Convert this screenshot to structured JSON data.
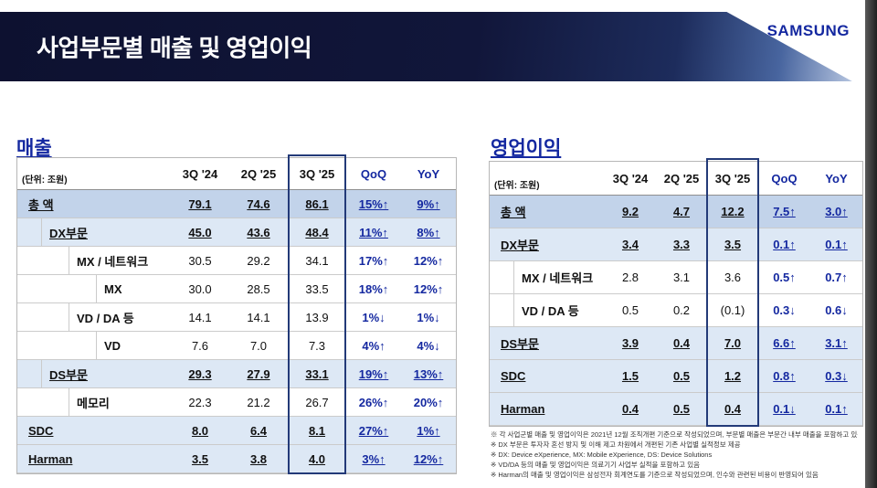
{
  "header": {
    "title": "사업부문별 매출 및 영업이익",
    "logo": "SAMSUNG"
  },
  "revenue": {
    "section_title": "매출",
    "unit_label": "(단위: 조원)",
    "columns": [
      "3Q '24",
      "2Q '25",
      "3Q '25",
      "QoQ",
      "YoY"
    ],
    "rows": [
      {
        "label": "총 액",
        "indent": 0,
        "style": "total",
        "values": [
          "79.1",
          "74.6",
          "86.1",
          "15%↑",
          "9%↑"
        ]
      },
      {
        "label": "DX부문",
        "indent": 1,
        "style": "section",
        "values": [
          "45.0",
          "43.6",
          "48.4",
          "11%↑",
          "8%↑"
        ]
      },
      {
        "label": "MX / 네트워크",
        "indent": 2,
        "style": "plain",
        "values": [
          "30.5",
          "29.2",
          "34.1",
          "17%↑",
          "12%↑"
        ]
      },
      {
        "label": "MX",
        "indent": 3,
        "style": "plain",
        "values": [
          "30.0",
          "28.5",
          "33.5",
          "18%↑",
          "12%↑"
        ]
      },
      {
        "label": "VD / DA 등",
        "indent": 2,
        "style": "plain",
        "values": [
          "14.1",
          "14.1",
          "13.9",
          "1%↓",
          "1%↓"
        ]
      },
      {
        "label": "VD",
        "indent": 3,
        "style": "plain",
        "values": [
          "7.6",
          "7.0",
          "7.3",
          "4%↑",
          "4%↓"
        ]
      },
      {
        "label": "DS부문",
        "indent": 1,
        "style": "section",
        "values": [
          "29.3",
          "27.9",
          "33.1",
          "19%↑",
          "13%↑"
        ]
      },
      {
        "label": "메모리",
        "indent": 2,
        "style": "plain",
        "values": [
          "22.3",
          "21.2",
          "26.7",
          "26%↑",
          "20%↑"
        ]
      },
      {
        "label": "SDC",
        "indent": 0,
        "style": "section",
        "values": [
          "8.0",
          "6.4",
          "8.1",
          "27%↑",
          "1%↑"
        ]
      },
      {
        "label": "Harman",
        "indent": 0,
        "style": "section",
        "values": [
          "3.5",
          "3.8",
          "4.0",
          "3%↑",
          "12%↑"
        ]
      }
    ]
  },
  "operating_profit": {
    "section_title": "영업이익",
    "unit_label": "(단위: 조원)",
    "columns": [
      "3Q '24",
      "2Q '25",
      "3Q '25",
      "QoQ",
      "YoY"
    ],
    "rows": [
      {
        "label": "총 액",
        "indent": 0,
        "style": "total",
        "values": [
          "9.2",
          "4.7",
          "12.2",
          "7.5↑",
          "3.0↑"
        ]
      },
      {
        "label": "DX부문",
        "indent": 0,
        "style": "section",
        "values": [
          "3.4",
          "3.3",
          "3.5",
          "0.1↑",
          "0.1↑"
        ]
      },
      {
        "label": "MX / 네트워크",
        "indent": 1,
        "style": "plain",
        "values": [
          "2.8",
          "3.1",
          "3.6",
          "0.5↑",
          "0.7↑"
        ]
      },
      {
        "label": "VD / DA 등",
        "indent": 1,
        "style": "plain",
        "values": [
          "0.5",
          "0.2",
          "(0.1)",
          "0.3↓",
          "0.6↓"
        ]
      },
      {
        "label": "DS부문",
        "indent": 0,
        "style": "section",
        "values": [
          "3.9",
          "0.4",
          "7.0",
          "6.6↑",
          "3.1↑"
        ]
      },
      {
        "label": "SDC",
        "indent": 0,
        "style": "section",
        "values": [
          "1.5",
          "0.5",
          "1.2",
          "0.8↑",
          "0.3↓"
        ]
      },
      {
        "label": "Harman",
        "indent": 0,
        "style": "section",
        "values": [
          "0.4",
          "0.5",
          "0.4",
          "0.1↓",
          "0.1↑"
        ]
      }
    ]
  },
  "footnotes": [
    "※ 각 사업군별 매출 및 영업이익은 2021년 12월 조직개편 기준으로 작성되었으며, 부문별 매출은 부문간 내부 매출을 포함하고 있음",
    "※ DX 부문은 투자자 혼선 방지 및 이해 제고 차원에서 개편된 기존 사업별 실적정보 제공",
    "※ DX: Device eXperience, MX: Mobile eXperience, DS: Device Solutions",
    "※ VD/DA 등의 매출 및 영업이익은 의료기기 사업부 실적을 포함하고 있음",
    "※ Harman의 매출 및 영업이익은 삼성전자 회계연도를 기준으로 작성되었으며, 인수와 관련된 비용이 반영되어 있음"
  ],
  "colors": {
    "samsung_blue": "#1428a0",
    "band_navy": "#11163a",
    "total_row_bg": "#c2d3ea",
    "section_row_bg": "#dde8f5",
    "highlight_box": "#233a78"
  }
}
